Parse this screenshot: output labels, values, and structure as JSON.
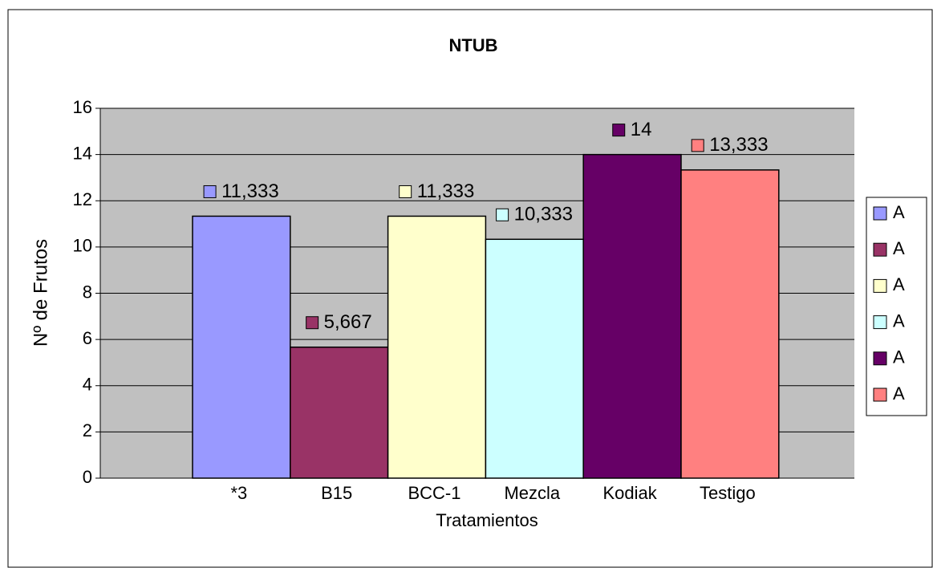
{
  "chart_data": {
    "type": "bar",
    "title": "NTUB",
    "x_label": "Tratamientos",
    "y_label": "Nº de Frutos",
    "categories": [
      "*3",
      "B15",
      "BCC-1",
      "Mezcla",
      "Kodiak",
      "Testigo"
    ],
    "values": [
      11.333,
      5.667,
      11.333,
      10.333,
      14,
      13.333
    ],
    "value_labels": [
      "11,333",
      "5,667",
      "11,333",
      "10,333",
      "14",
      "13,333"
    ],
    "colors": [
      "#9999ff",
      "#993366",
      "#ffffcc",
      "#ccffff",
      "#660066",
      "#ff8080"
    ],
    "legend": [
      "A",
      "A",
      "A",
      "A",
      "A",
      "A"
    ],
    "ylim": [
      0,
      16
    ],
    "yticks": [
      0,
      2,
      4,
      6,
      8,
      10,
      12,
      14,
      16
    ],
    "grid": true
  }
}
